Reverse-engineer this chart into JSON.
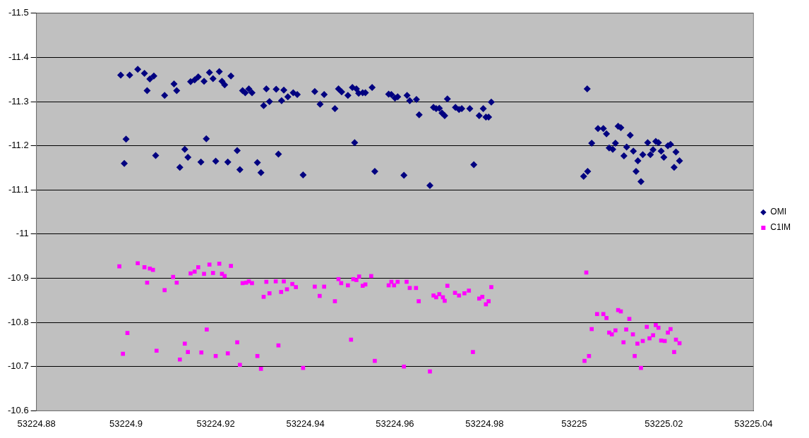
{
  "chart_data": {
    "type": "scatter",
    "xlim": [
      53224.88,
      53225.04
    ],
    "xticks": [
      53224.88,
      53224.9,
      53224.92,
      53224.94,
      53224.96,
      53224.98,
      53225,
      53225.02,
      53225.04
    ],
    "ylim": [
      -10.6,
      -11.5
    ],
    "yticks": [
      -11.5,
      -11.4,
      -11.3,
      -11.2,
      -11.1,
      -11,
      -10.9,
      -10.8,
      -10.7,
      -10.6
    ],
    "grid": "y",
    "legend": "right",
    "series": [
      {
        "name": "OMI",
        "color": "#000080",
        "marker": "diamond",
        "x": [
          53224.8988,
          53224.9008,
          53224.9026,
          53224.9041,
          53224.9047,
          53224.9053,
          53224.9062,
          53224.9086,
          53224.9107,
          53224.9113,
          53224.9144,
          53224.9153,
          53224.9161,
          53224.9174,
          53224.9186,
          53224.9194,
          53224.9208,
          53224.9214,
          53224.922,
          53224.9234,
          53224.926,
          53224.9266,
          53224.9274,
          53224.9281,
          53224.9307,
          53224.9313,
          53224.932,
          53224.9335,
          53224.9347,
          53224.9352,
          53224.9361,
          53224.9373,
          53224.9382,
          53224.9421,
          53224.9433,
          53224.9442,
          53224.9466,
          53224.9474,
          53224.9481,
          53224.9495,
          53224.9505,
          53224.9514,
          53224.9519,
          53224.9528,
          53224.9534,
          53224.9549,
          53224.9586,
          53224.9592,
          53224.96,
          53224.9606,
          53224.9627,
          53224.9633,
          53224.9648,
          53224.9654,
          53224.9686,
          53224.9692,
          53224.9699,
          53224.9705,
          53224.9711,
          53224.9717,
          53224.9735,
          53224.9743,
          53224.9749,
          53224.9767,
          53224.9788,
          53224.9797,
          53224.9803,
          53224.9809,
          53224.9815,
          53224.8996,
          53224.9,
          53224.9066,
          53224.912,
          53224.9131,
          53224.9138,
          53224.9167,
          53224.9179,
          53224.92,
          53224.9227,
          53224.9248,
          53224.9254,
          53224.9293,
          53224.9301,
          53224.934,
          53224.9395,
          53224.951,
          53224.9555,
          53224.962,
          53224.9678,
          53224.9776,
          53225.0029,
          53225.0021,
          53225.003,
          53225.0039,
          53225.0053,
          53225.0065,
          53225.0072,
          53225.0078,
          53225.0086,
          53225.0092,
          53225.0098,
          53225.0104,
          53225.0111,
          53225.0117,
          53225.0125,
          53225.0132,
          53225.0138,
          53225.0142,
          53225.0149,
          53225.0153,
          53225.0164,
          53225.017,
          53225.0176,
          53225.0182,
          53225.0188,
          53225.0194,
          53225.02,
          53225.0209,
          53225.0215,
          53225.0223,
          53225.0227,
          53225.0235
        ],
        "values": [
          -11.36,
          -11.36,
          -11.373,
          -11.364,
          -11.325,
          -11.351,
          -11.358,
          -11.314,
          -11.34,
          -11.325,
          -11.345,
          -11.349,
          -11.356,
          -11.346,
          -11.366,
          -11.352,
          -11.368,
          -11.346,
          -11.338,
          -11.358,
          -11.325,
          -11.32,
          -11.329,
          -11.32,
          -11.291,
          -11.329,
          -11.3,
          -11.328,
          -11.302,
          -11.326,
          -11.311,
          -11.32,
          -11.316,
          -11.323,
          -11.294,
          -11.316,
          -11.284,
          -11.329,
          -11.322,
          -11.314,
          -11.332,
          -11.329,
          -11.319,
          -11.32,
          -11.32,
          -11.332,
          -11.317,
          -11.316,
          -11.308,
          -11.311,
          -11.314,
          -11.302,
          -11.305,
          -11.27,
          -11.287,
          -11.284,
          -11.285,
          -11.274,
          -11.268,
          -11.306,
          -11.287,
          -11.282,
          -11.284,
          -11.284,
          -11.268,
          -11.284,
          -11.265,
          -11.265,
          -11.299,
          -11.16,
          -11.215,
          -11.178,
          -11.151,
          -11.192,
          -11.174,
          -11.163,
          -11.216,
          -11.165,
          -11.163,
          -11.189,
          -11.146,
          -11.162,
          -11.139,
          -11.181,
          -11.134,
          -11.207,
          -11.142,
          -11.133,
          -11.11,
          -11.157,
          -11.329,
          -11.131,
          -11.142,
          -11.206,
          -11.239,
          -11.239,
          -11.227,
          -11.195,
          -11.192,
          -11.206,
          -11.244,
          -11.241,
          -11.177,
          -11.197,
          -11.224,
          -11.188,
          -11.142,
          -11.166,
          -11.119,
          -11.18,
          -11.207,
          -11.18,
          -11.191,
          -11.21,
          -11.207,
          -11.188,
          -11.174,
          -11.2,
          -11.203,
          -11.151,
          -11.186,
          -11.166
        ]
      },
      {
        "name": "C1IM",
        "color": "#ff00ff",
        "marker": "square",
        "x": [
          53224.8985,
          53224.8993,
          53224.9003,
          53224.9026,
          53224.9041,
          53224.9047,
          53224.9053,
          53224.906,
          53224.9068,
          53224.9086,
          53224.9105,
          53224.9113,
          53224.912,
          53224.9131,
          53224.9138,
          53224.9144,
          53224.9153,
          53224.9161,
          53224.9168,
          53224.9174,
          53224.918,
          53224.9186,
          53224.9194,
          53224.92,
          53224.9208,
          53224.9214,
          53224.922,
          53224.9227,
          53224.9234,
          53224.9248,
          53224.9254,
          53224.926,
          53224.9268,
          53224.9274,
          53224.9281,
          53224.9293,
          53224.9301,
          53224.9307,
          53224.9313,
          53224.932,
          53224.9334,
          53224.934,
          53224.9346,
          53224.9352,
          53224.9359,
          53224.9371,
          53224.9379,
          53224.9395,
          53224.9421,
          53224.9432,
          53224.9442,
          53224.9466,
          53224.9474,
          53224.948,
          53224.9495,
          53224.9502,
          53224.9507,
          53224.9514,
          53224.952,
          53224.9528,
          53224.9534,
          53224.9547,
          53224.9555,
          53224.9586,
          53224.9592,
          53224.9598,
          53224.9606,
          53224.962,
          53224.9626,
          53224.9633,
          53224.9647,
          53224.9653,
          53224.9678,
          53224.9686,
          53224.9692,
          53224.9699,
          53224.9707,
          53224.9711,
          53224.9717,
          53224.9734,
          53224.9743,
          53224.9755,
          53224.9765,
          53224.9774,
          53224.9788,
          53224.9795,
          53224.9803,
          53224.9809,
          53224.9815,
          53225.0027,
          53225.0023,
          53225.0033,
          53225.0039,
          53225.0051,
          53225.0065,
          53225.0072,
          53225.0078,
          53225.0084,
          53225.0092,
          53225.0098,
          53225.0104,
          53225.011,
          53225.0116,
          53225.0123,
          53225.0131,
          53225.0135,
          53225.0141,
          53225.0149,
          53225.0153,
          53225.0162,
          53225.0168,
          53225.0176,
          53225.0182,
          53225.0188,
          53225.0194,
          53225.0202,
          53225.0209,
          53225.0215,
          53225.0223,
          53225.0227,
          53225.0235
        ],
        "values": [
          -10.927,
          -10.729,
          -10.776,
          -10.934,
          -10.925,
          -10.89,
          -10.922,
          -10.919,
          -10.736,
          -10.873,
          -10.903,
          -10.89,
          -10.716,
          -10.752,
          -10.733,
          -10.911,
          -10.915,
          -10.925,
          -10.732,
          -10.91,
          -10.784,
          -10.931,
          -10.912,
          -10.724,
          -10.933,
          -10.91,
          -10.905,
          -10.73,
          -10.928,
          -10.755,
          -10.704,
          -10.889,
          -10.89,
          -10.893,
          -10.889,
          -10.724,
          -10.695,
          -10.858,
          -10.892,
          -10.866,
          -10.893,
          -10.748,
          -10.869,
          -10.893,
          -10.875,
          -10.887,
          -10.88,
          -10.697,
          -10.881,
          -10.86,
          -10.881,
          -10.848,
          -10.898,
          -10.889,
          -10.884,
          -10.761,
          -10.898,
          -10.896,
          -10.904,
          -10.883,
          -10.886,
          -10.905,
          -10.713,
          -10.884,
          -10.892,
          -10.884,
          -10.892,
          -10.7,
          -10.892,
          -10.878,
          -10.878,
          -10.848,
          -10.689,
          -10.861,
          -10.857,
          -10.864,
          -10.857,
          -10.849,
          -10.883,
          -10.867,
          -10.861,
          -10.866,
          -10.872,
          -10.733,
          -10.854,
          -10.858,
          -10.841,
          -10.848,
          -10.88,
          -10.913,
          -10.713,
          -10.724,
          -10.785,
          -10.819,
          -10.819,
          -10.81,
          -10.777,
          -10.773,
          -10.782,
          -10.828,
          -10.825,
          -10.755,
          -10.784,
          -10.808,
          -10.773,
          -10.724,
          -10.752,
          -10.697,
          -10.758,
          -10.79,
          -10.764,
          -10.771,
          -10.794,
          -10.788,
          -10.759,
          -10.758,
          -10.777,
          -10.785,
          -10.733,
          -10.761,
          -10.753
        ]
      }
    ]
  }
}
